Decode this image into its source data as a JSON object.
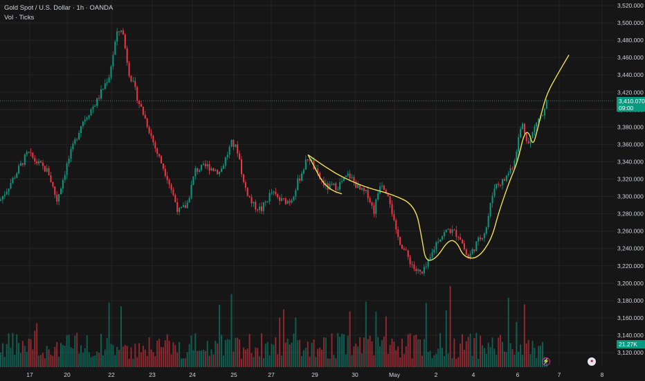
{
  "legend": {
    "symbol_line": "Gold Spot / U.S. Dollar · 1h · OANDA",
    "volume_line": "Vol · Ticks"
  },
  "price_axis": {
    "labels": [
      "3,520.000",
      "3,500.000",
      "3,480.000",
      "3,460.000",
      "3,440.000",
      "3,420.000",
      "3,400.000",
      "3,380.000",
      "3,360.000",
      "3,340.000",
      "3,320.000",
      "3,300.000",
      "3,280.000",
      "3,260.000",
      "3,240.000",
      "3,220.000",
      "3,200.000",
      "3,180.000",
      "3,160.000",
      "3,140.000",
      "3,120.000"
    ],
    "last_price": "3,410.070",
    "countdown": "09:00",
    "volume_value": "21.27K"
  },
  "time_axis": {
    "labels": [
      "17",
      "20",
      "22",
      "23",
      "24",
      "25",
      "27",
      "29",
      "30",
      "May",
      "2",
      "4",
      "6",
      "7",
      "8"
    ]
  },
  "colors": {
    "background": "#161616",
    "up": "#089981",
    "down": "#f23645",
    "annotation": "#f5e050",
    "grid": "#232323",
    "text": "#d1d4dc"
  },
  "icons": [
    "flash-icon",
    "us-flag-icon"
  ],
  "chart_data": {
    "type": "candlestick",
    "title": "Gold Spot / U.S. Dollar · 1h · OANDA",
    "ylim": [
      3110,
      3525
    ],
    "last_price": 3410.07,
    "anchors": [
      {
        "x": 0,
        "y": 3295
      },
      {
        "x": 20,
        "y": 3322
      },
      {
        "x": 40,
        "y": 3350
      },
      {
        "x": 52,
        "y": 3340
      },
      {
        "x": 70,
        "y": 3328
      },
      {
        "x": 82,
        "y": 3295
      },
      {
        "x": 98,
        "y": 3340
      },
      {
        "x": 118,
        "y": 3385
      },
      {
        "x": 140,
        "y": 3410
      },
      {
        "x": 158,
        "y": 3440
      },
      {
        "x": 168,
        "y": 3485
      },
      {
        "x": 176,
        "y": 3495
      },
      {
        "x": 186,
        "y": 3445
      },
      {
        "x": 200,
        "y": 3410
      },
      {
        "x": 212,
        "y": 3385
      },
      {
        "x": 226,
        "y": 3352
      },
      {
        "x": 242,
        "y": 3322
      },
      {
        "x": 258,
        "y": 3282
      },
      {
        "x": 270,
        "y": 3290
      },
      {
        "x": 282,
        "y": 3330
      },
      {
        "x": 300,
        "y": 3335
      },
      {
        "x": 318,
        "y": 3328
      },
      {
        "x": 335,
        "y": 3362
      },
      {
        "x": 344,
        "y": 3352
      },
      {
        "x": 352,
        "y": 3315
      },
      {
        "x": 365,
        "y": 3290
      },
      {
        "x": 378,
        "y": 3285
      },
      {
        "x": 392,
        "y": 3305
      },
      {
        "x": 405,
        "y": 3295
      },
      {
        "x": 420,
        "y": 3295
      },
      {
        "x": 433,
        "y": 3322
      },
      {
        "x": 446,
        "y": 3347
      },
      {
        "x": 458,
        "y": 3325
      },
      {
        "x": 472,
        "y": 3310
      },
      {
        "x": 488,
        "y": 3312
      },
      {
        "x": 504,
        "y": 3325
      },
      {
        "x": 520,
        "y": 3307
      },
      {
        "x": 532,
        "y": 3302
      },
      {
        "x": 540,
        "y": 3282
      },
      {
        "x": 550,
        "y": 3318
      },
      {
        "x": 562,
        "y": 3302
      },
      {
        "x": 572,
        "y": 3258
      },
      {
        "x": 586,
        "y": 3235
      },
      {
        "x": 600,
        "y": 3215
      },
      {
        "x": 610,
        "y": 3210
      },
      {
        "x": 620,
        "y": 3225
      },
      {
        "x": 632,
        "y": 3250
      },
      {
        "x": 648,
        "y": 3262
      },
      {
        "x": 664,
        "y": 3255
      },
      {
        "x": 676,
        "y": 3228
      },
      {
        "x": 688,
        "y": 3245
      },
      {
        "x": 702,
        "y": 3262
      },
      {
        "x": 714,
        "y": 3312
      },
      {
        "x": 728,
        "y": 3318
      },
      {
        "x": 742,
        "y": 3338
      },
      {
        "x": 754,
        "y": 3385
      },
      {
        "x": 764,
        "y": 3360
      },
      {
        "x": 776,
        "y": 3388
      },
      {
        "x": 786,
        "y": 3395
      },
      {
        "x": 790,
        "y": 3410
      }
    ],
    "annotations": [
      {
        "type": "curve",
        "label": "yellow drawing 1",
        "points": [
          [
            445,
            3348
          ],
          [
            470,
            3334
          ],
          [
            495,
            3322
          ],
          [
            530,
            3310
          ],
          [
            565,
            3303
          ],
          [
            600,
            3290
          ],
          [
            610,
            3250
          ],
          [
            615,
            3225
          ],
          [
            630,
            3228
          ],
          [
            648,
            3250
          ],
          [
            660,
            3248
          ],
          [
            670,
            3230
          ],
          [
            690,
            3228
          ],
          [
            710,
            3250
          ],
          [
            720,
            3280
          ],
          [
            735,
            3315
          ],
          [
            748,
            3340
          ],
          [
            757,
            3372
          ],
          [
            764,
            3375
          ],
          [
            770,
            3358
          ],
          [
            776,
            3375
          ],
          [
            782,
            3395
          ],
          [
            790,
            3418
          ],
          [
            805,
            3440
          ],
          [
            822,
            3463
          ]
        ]
      },
      {
        "type": "curve",
        "label": "yellow drawing 2",
        "points": [
          [
            445,
            3348
          ],
          [
            455,
            3333
          ],
          [
            462,
            3322
          ],
          [
            470,
            3313
          ],
          [
            482,
            3306
          ],
          [
            494,
            3303
          ]
        ]
      }
    ]
  }
}
